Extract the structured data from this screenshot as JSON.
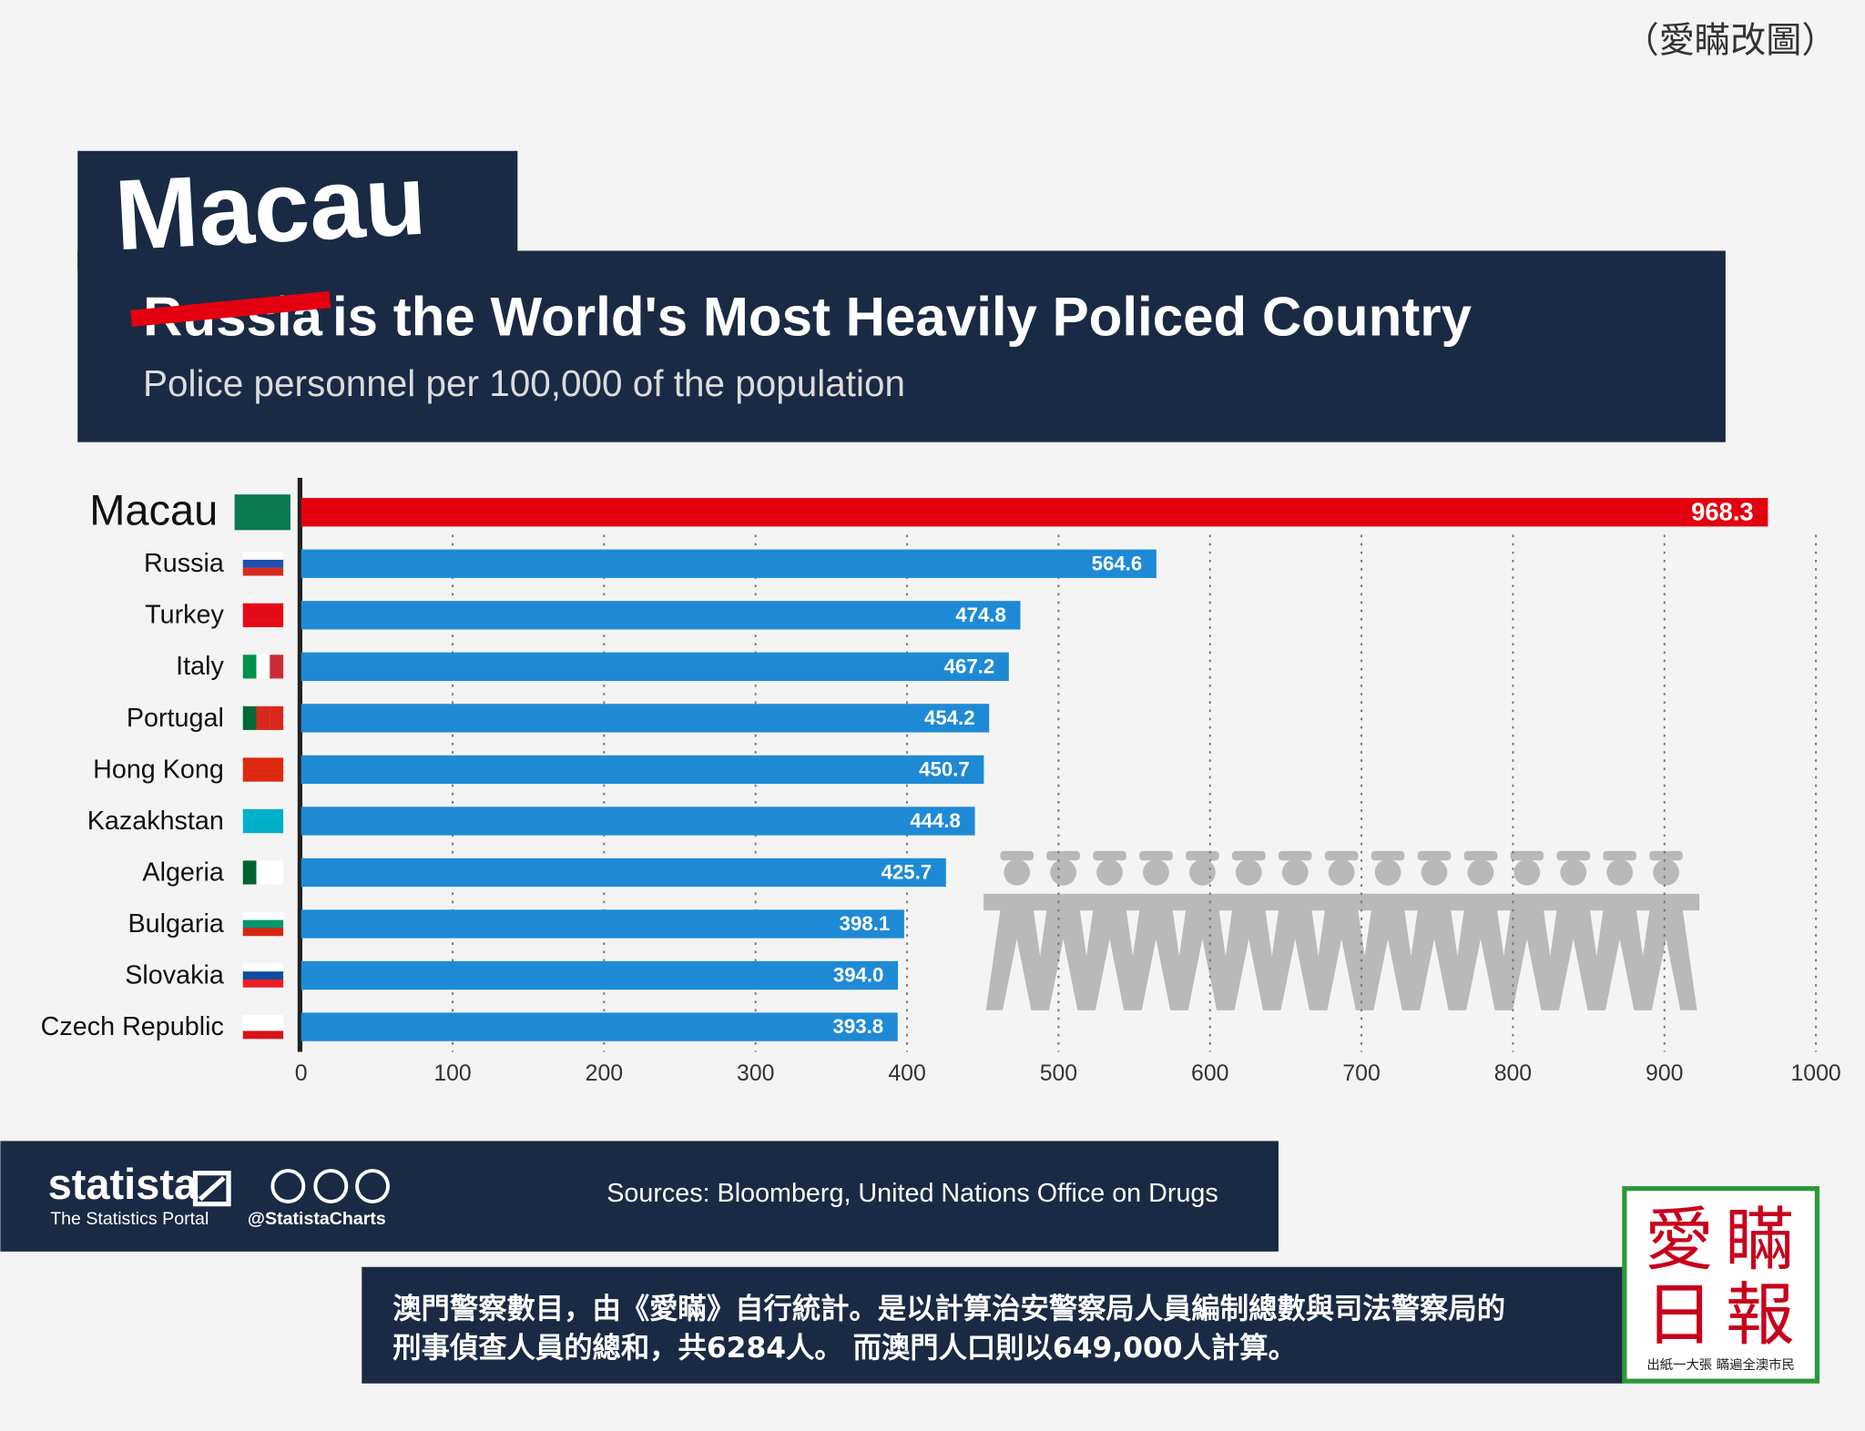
{
  "corner_note": "（愛瞞改圖）",
  "chart_data": {
    "type": "bar",
    "orientation": "horizontal",
    "title_replacement": "Macau",
    "title_struck": "Russia",
    "title": "is the World's Most Heavily Policed Country",
    "subtitle": "Police personnel per 100,000 of the population",
    "categories": [
      "Macau",
      "Russia",
      "Turkey",
      "Italy",
      "Portugal",
      "Hong Kong",
      "Kazakhstan",
      "Algeria",
      "Bulgaria",
      "Slovakia",
      "Czech Republic"
    ],
    "values": [
      968.3,
      564.6,
      474.8,
      467.2,
      454.2,
      450.7,
      444.8,
      425.7,
      398.1,
      394.0,
      393.8
    ],
    "value_labels": [
      "968.3",
      "564.6",
      "474.8",
      "467.2",
      "454.2",
      "450.7",
      "444.8",
      "425.7",
      "398.1",
      "394.0",
      "393.8"
    ],
    "bar_colors": [
      "#e3000f",
      "#1e8ad6",
      "#1e8ad6",
      "#1e8ad6",
      "#1e8ad6",
      "#1e8ad6",
      "#1e8ad6",
      "#1e8ad6",
      "#1e8ad6",
      "#1e8ad6",
      "#1e8ad6"
    ],
    "xlim": [
      0,
      1000
    ],
    "xticks": [
      0,
      100,
      200,
      300,
      400,
      500,
      600,
      700,
      800,
      900,
      1000
    ],
    "grid": true
  },
  "footer": {
    "brand": "statista",
    "brand_tagline": "The Statistics Portal",
    "handle": "@StatistaCharts",
    "source": "Sources: Bloomberg, United Nations Office on Drugs"
  },
  "note": {
    "lines": [
      "澳門警察數目，由《愛瞞》自行統計。是以計算治安警察局人員編制總數與司法警察局的",
      "刑事偵查人員的總和，共6284人。 而澳門人口則以649,000人計算。"
    ]
  },
  "logo": {
    "characters": [
      "愛",
      "瞞",
      "日",
      "報"
    ],
    "slogan": "出紙一大張 瞞遍全澳市民"
  }
}
